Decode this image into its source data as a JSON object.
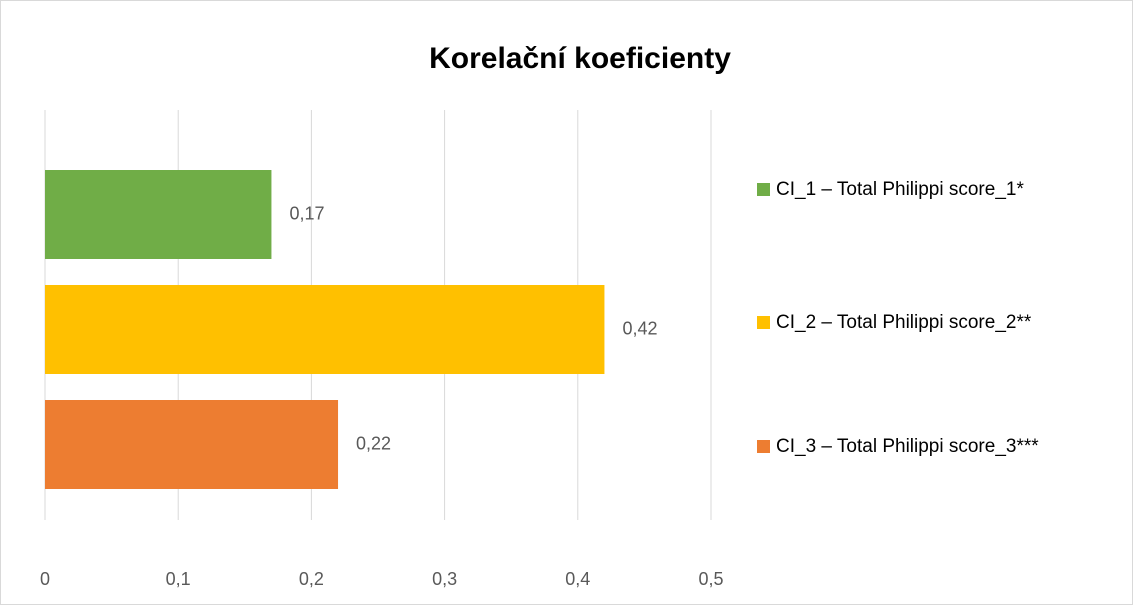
{
  "chart_data": {
    "type": "bar",
    "orientation": "horizontal",
    "title": "Korelační koeficienty",
    "series": [
      {
        "name": "CI_1 – Total Philippi score_1*",
        "color": "#70ad47",
        "values": [
          0.17
        ],
        "value_labels": [
          "0,17"
        ]
      },
      {
        "name": "CI_2 – Total Philippi score_2**",
        "color": "#ffc000",
        "values": [
          0.42
        ],
        "value_labels": [
          "0,42"
        ]
      },
      {
        "name": "CI_3 – Total Philippi score_3***",
        "color": "#ed7d31",
        "values": [
          0.22
        ],
        "value_labels": [
          "0,22"
        ]
      }
    ],
    "xlim": [
      0,
      0.5
    ],
    "xticks": [
      0,
      {
        "value": 0.1,
        "label": "0,1"
      },
      {
        "value": 0.2,
        "label": "0,2"
      },
      {
        "value": 0.3,
        "label": "0,3"
      },
      {
        "value": 0.4,
        "label": "0,4"
      },
      {
        "value": 0.5,
        "label": "0,5"
      }
    ],
    "grid": true,
    "legend": "right"
  }
}
